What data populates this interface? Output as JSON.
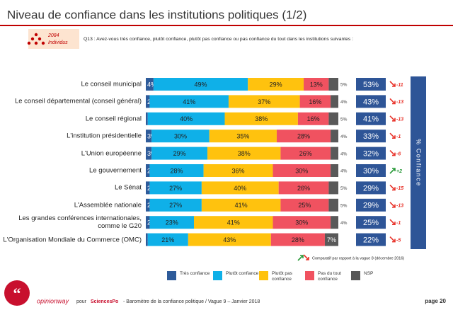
{
  "header": {
    "title": "Niveau de confiance dans les institutions politiques (1/2)",
    "sample_count": "2084",
    "sample_unit": "Individus",
    "question": "Q13 : Avez-vous très confiance, plutôt confiance, plutôt pas confiance ou pas confiance du tout dans les institutions suivantes :"
  },
  "chart_data": {
    "type": "bar",
    "orientation": "horizontal",
    "stacked": true,
    "categories": [
      "Le conseil municipal",
      "Le conseil départemental (conseil général)",
      "Le conseil régional",
      "L'institution présidentielle",
      "L'Union européenne",
      "Le gouvernement",
      "Le Sénat",
      "L'Assemblée nationale",
      "Les grandes conférences internationales, comme le G20",
      "L'Organisation Mondiale du Commerce (OMC)"
    ],
    "series": [
      {
        "name": "Très confiance",
        "color": "#2e5b9a",
        "values": [
          4,
          2,
          1,
          3,
          3,
          2,
          2,
          2,
          2,
          1
        ],
        "value_labels": [
          "4%",
          "2%",
          "1%",
          "3%",
          "3%",
          "2%",
          "2%",
          "2%",
          "2%",
          "1%"
        ]
      },
      {
        "name": "Plutôt confiance",
        "color": "#0fb0e8",
        "values": [
          49,
          41,
          40,
          30,
          29,
          28,
          27,
          27,
          23,
          21
        ],
        "value_labels": [
          "49%",
          "41%",
          "40%",
          "30%",
          "29%",
          "28%",
          "27%",
          "27%",
          "23%",
          "21%"
        ]
      },
      {
        "name": "Plutôt pas confiance",
        "color": "#ffc20e",
        "values": [
          29,
          37,
          38,
          35,
          38,
          36,
          40,
          41,
          41,
          43
        ],
        "value_labels": [
          "29%",
          "37%",
          "38%",
          "35%",
          "38%",
          "36%",
          "40%",
          "41%",
          "41%",
          "43%"
        ]
      },
      {
        "name": "Pas du tout confiance",
        "color": "#f05260",
        "values": [
          13,
          16,
          16,
          28,
          26,
          30,
          26,
          25,
          30,
          28
        ],
        "value_labels": [
          "13%",
          "16%",
          "16%",
          "28%",
          "26%",
          "30%",
          "26%",
          "25%",
          "30%",
          "28%"
        ]
      },
      {
        "name": "NSP",
        "color": "#595959",
        "values": [
          5,
          4,
          5,
          4,
          4,
          4,
          5,
          5,
          4,
          7
        ],
        "value_labels": [
          "5%",
          "4%",
          "5%",
          "4%",
          "4%",
          "4%",
          "5%",
          "5%",
          "4%",
          "7%"
        ]
      }
    ],
    "totals": {
      "name": "% Confiance",
      "color": "#2e5597",
      "values": [
        53,
        43,
        41,
        33,
        32,
        30,
        29,
        29,
        25,
        22
      ],
      "value_labels": [
        "53%",
        "43%",
        "41%",
        "33%",
        "32%",
        "30%",
        "29%",
        "29%",
        "25%",
        "22%"
      ]
    },
    "changes": {
      "note": "Comparatif par rapport à la vague 8 (décembre 2016)",
      "values": [
        -11,
        -13,
        -13,
        -1,
        -6,
        2,
        -15,
        -13,
        -1,
        -5
      ],
      "value_labels": [
        "-11",
        "-13",
        "-13",
        "-1",
        "-6",
        "+2",
        "-15",
        "-13",
        "-1",
        "-5"
      ],
      "down_color": "#e8332a",
      "up_color": "#2a9a3a"
    }
  },
  "footer": {
    "brand": "opinionway",
    "for": "pour",
    "partner": "SciencesPo",
    "description": "- Baromètre de la confiance politique / Vague 9 – Janvier 2018",
    "page": "page 20"
  }
}
